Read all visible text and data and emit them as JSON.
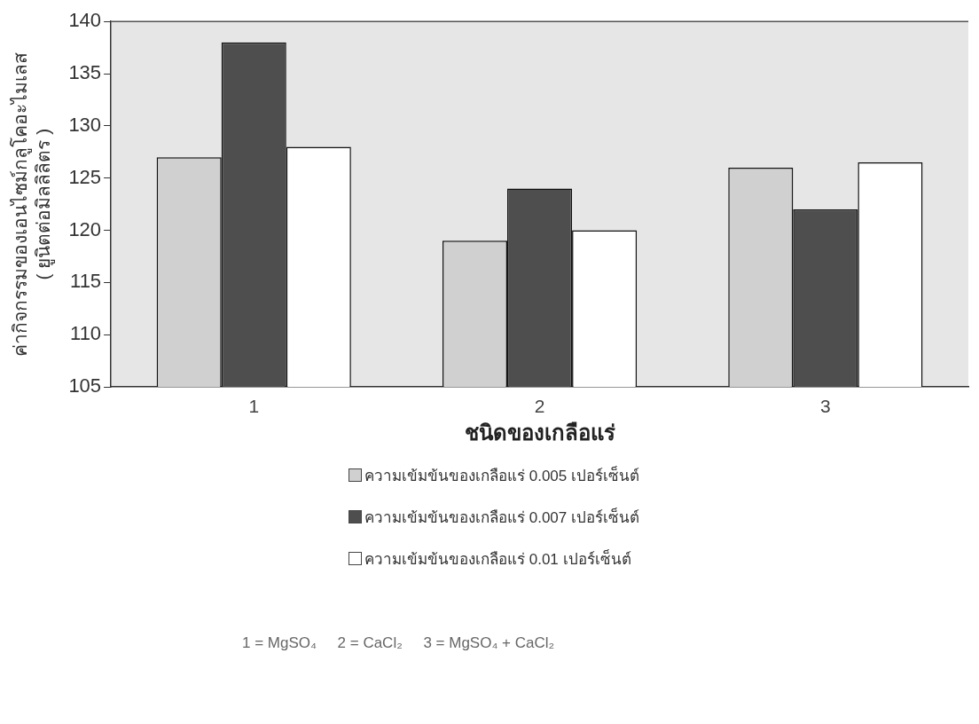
{
  "chart_data": {
    "type": "bar",
    "categories": [
      "1",
      "2",
      "3"
    ],
    "xlabel": "ชนิดของเกลือแร่",
    "ylabel": "ค่ากิจกรรมของเอนไซม์กลูโคอะไมเลส\n( ยูนิตต่อมิลลิลิตร )",
    "series": [
      {
        "name": "ความเข้มข้นของเกลือแร่ 0.005 เปอร์เซ็นต์",
        "color": "#d0d0d0",
        "values": [
          127,
          119,
          126
        ]
      },
      {
        "name": "ความเข้มข้นของเกลือแร่ 0.007 เปอร์เซ็นต์",
        "color": "#4e4e4e",
        "values": [
          138,
          124,
          122
        ]
      },
      {
        "name": "ความเข้มข้นของเกลือแร่ 0.01 เปอร์เซ็นต์",
        "color": "#ffffff",
        "values": [
          128,
          120,
          126.5
        ]
      }
    ],
    "ylim": [
      105,
      140
    ],
    "yticks": [
      105,
      110,
      115,
      120,
      125,
      130,
      135,
      140
    ],
    "grid": false,
    "legend": "bottom",
    "annotations": [
      "1 = MgSO₄     2 = CaCl₂     3 = MgSO₄ + CaCl₂"
    ]
  }
}
